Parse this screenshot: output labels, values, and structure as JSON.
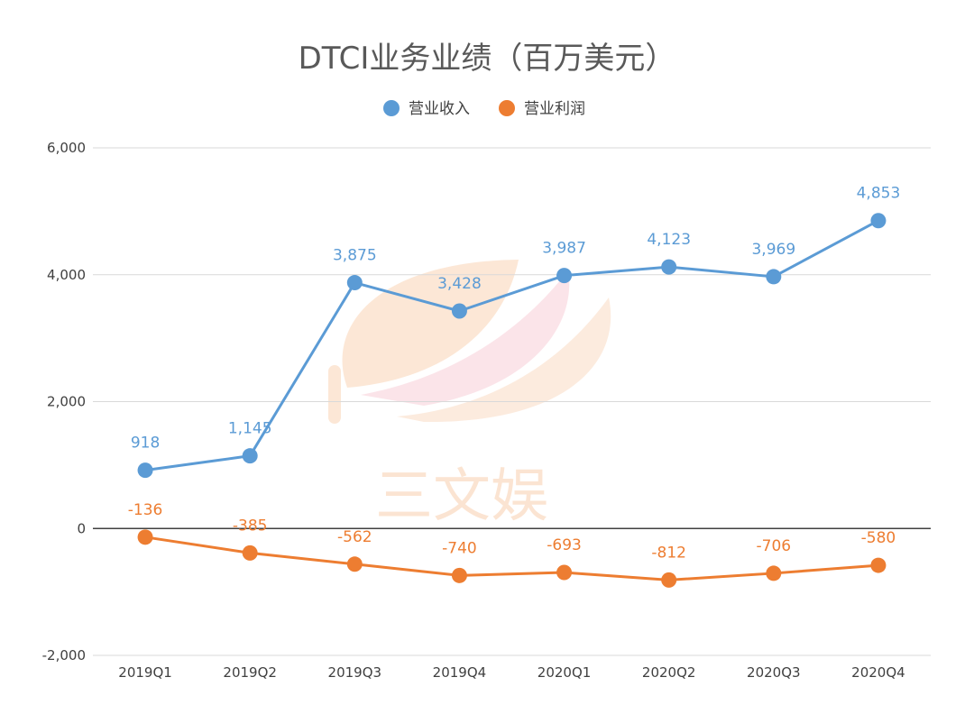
{
  "chart_data": {
    "type": "line",
    "title": "DTCI业务业绩（百万美元）",
    "categories": [
      "2019Q1",
      "2019Q2",
      "2019Q3",
      "2019Q4",
      "2020Q1",
      "2020Q2",
      "2020Q3",
      "2020Q4"
    ],
    "series": [
      {
        "name": "营业收入",
        "color": "#5b9bd5",
        "values": [
          918,
          1145,
          3875,
          3428,
          3987,
          4123,
          3969,
          4853
        ],
        "labels": [
          "918",
          "1,145",
          "3,875",
          "3,428",
          "3,987",
          "4,123",
          "3,969",
          "4,853"
        ]
      },
      {
        "name": "营业利润",
        "color": "#ed7d31",
        "values": [
          -136,
          -385,
          -562,
          -740,
          -693,
          -812,
          -706,
          -580
        ],
        "labels": [
          "-136",
          "-385",
          "-562",
          "-740",
          "-693",
          "-812",
          "-706",
          "-580"
        ]
      }
    ],
    "ylim": [
      -2000,
      6000
    ],
    "yticks": [
      -2000,
      0,
      2000,
      4000,
      6000
    ],
    "ytick_labels": [
      "-2,000",
      "0",
      "2,000",
      "4,000",
      "6,000"
    ],
    "grid": true,
    "legend_position": "top-center",
    "xlabel": "",
    "ylabel": ""
  },
  "watermark": {
    "text": "三文娱",
    "color_primary": "#f9d3b5",
    "color_secondary": "#f6c3cf"
  },
  "colors": {
    "grid": "#d9d9d9",
    "zero_axis": "#404040",
    "title": "#595959"
  }
}
